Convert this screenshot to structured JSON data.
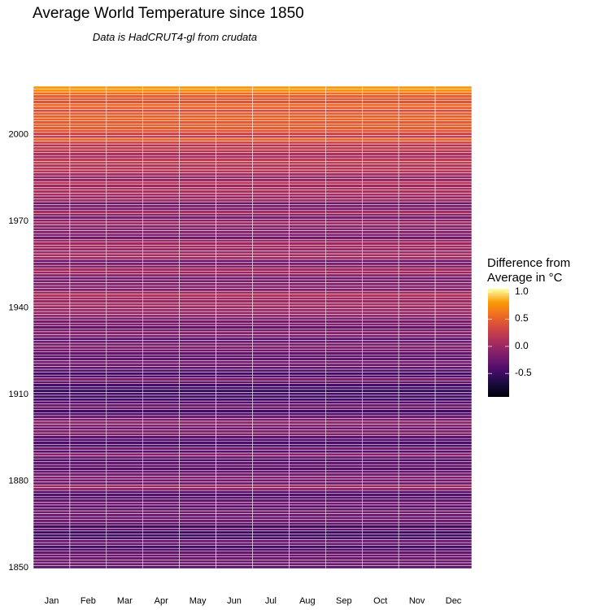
{
  "chart_data": {
    "type": "heatmap",
    "title": "Average World Temperature since 1850",
    "subtitle": "Data is HadCRUT4-gl from crudata",
    "xlabel": "",
    "ylabel": "",
    "categories": [
      "Jan",
      "Feb",
      "Mar",
      "Apr",
      "May",
      "Jun",
      "Jul",
      "Aug",
      "Sep",
      "Oct",
      "Nov",
      "Dec"
    ],
    "y_start": 1850,
    "y_end": 2016,
    "y_ticks": [
      1850,
      1880,
      1910,
      1940,
      1970,
      2000
    ],
    "annual_values": [
      -0.37,
      -0.22,
      -0.23,
      -0.27,
      -0.24,
      -0.27,
      -0.36,
      -0.46,
      -0.27,
      -0.26,
      -0.43,
      -0.47,
      -0.53,
      -0.26,
      -0.49,
      -0.29,
      -0.21,
      -0.27,
      -0.27,
      -0.18,
      -0.28,
      -0.33,
      -0.21,
      -0.29,
      -0.34,
      -0.37,
      -0.38,
      -0.07,
      0.02,
      -0.23,
      -0.2,
      -0.13,
      -0.2,
      -0.28,
      -0.33,
      -0.31,
      -0.3,
      -0.39,
      -0.24,
      -0.09,
      -0.35,
      -0.27,
      -0.4,
      -0.41,
      -0.38,
      -0.33,
      -0.14,
      -0.11,
      -0.27,
      -0.12,
      -0.08,
      -0.15,
      -0.26,
      -0.37,
      -0.47,
      -0.28,
      -0.22,
      -0.39,
      -0.43,
      -0.48,
      -0.44,
      -0.55,
      -0.45,
      -0.43,
      -0.27,
      -0.15,
      -0.37,
      -0.47,
      -0.36,
      -0.28,
      -0.27,
      -0.19,
      -0.3,
      -0.29,
      -0.28,
      -0.22,
      -0.11,
      -0.21,
      -0.21,
      -0.36,
      -0.16,
      -0.1,
      -0.16,
      -0.29,
      -0.12,
      -0.2,
      -0.15,
      -0.03,
      -0.02,
      -0.02,
      0.02,
      0.06,
      0.0,
      0.0,
      0.15,
      0.03,
      -0.1,
      -0.12,
      -0.13,
      -0.14,
      -0.23,
      -0.06,
      0.0,
      0.09,
      -0.12,
      -0.14,
      -0.26,
      0.04,
      0.06,
      0.03,
      -0.03,
      0.05,
      0.02,
      0.04,
      -0.24,
      -0.15,
      -0.1,
      -0.09,
      -0.12,
      0.05,
      -0.08,
      -0.19,
      -0.06,
      0.08,
      -0.2,
      -0.13,
      -0.24,
      0.05,
      -0.03,
      0.06,
      0.08,
      0.12,
      0.0,
      0.18,
      -0.01,
      -0.03,
      0.05,
      0.18,
      0.18,
      0.1,
      0.25,
      0.2,
      0.06,
      0.11,
      0.17,
      0.28,
      0.14,
      0.35,
      0.54,
      0.27,
      0.29,
      0.44,
      0.5,
      0.51,
      0.45,
      0.54,
      0.51,
      0.49,
      0.39,
      0.51,
      0.56,
      0.42,
      0.47,
      0.49,
      0.58,
      0.77,
      0.8
    ],
    "colorscale": "inferno",
    "color_range": [
      -0.93,
      1.06
    ],
    "legend": {
      "title_line1": "Difference from",
      "title_line2": "Average in °C",
      "ticks": [
        "1.0",
        "0.5",
        "0.0",
        "-0.5"
      ],
      "tick_values": [
        1.0,
        0.5,
        0.0,
        -0.5
      ],
      "position": "right"
    },
    "grid": false
  }
}
